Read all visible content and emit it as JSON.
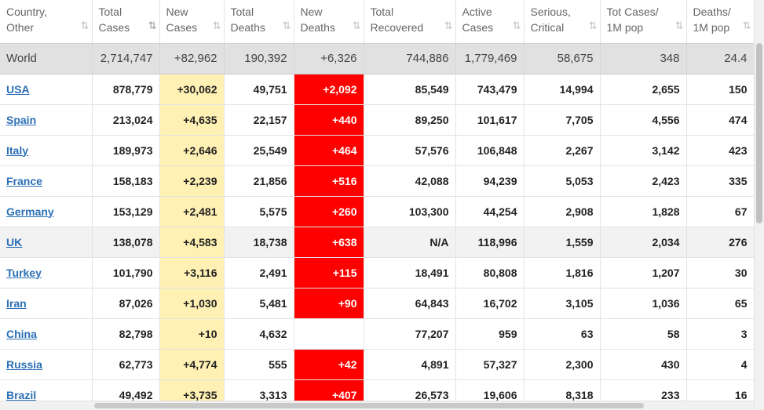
{
  "columns": [
    {
      "line1": "Country,",
      "line2": "Other",
      "sort": "⇅",
      "active": false
    },
    {
      "line1": "Total",
      "line2": "Cases",
      "sort": "⇅",
      "active": true
    },
    {
      "line1": "New",
      "line2": "Cases",
      "sort": "⇅",
      "active": false
    },
    {
      "line1": "Total",
      "line2": "Deaths",
      "sort": "⇅",
      "active": false
    },
    {
      "line1": "New",
      "line2": "Deaths",
      "sort": "⇅",
      "active": false
    },
    {
      "line1": "Total",
      "line2": "Recovered",
      "sort": "⇅",
      "active": false
    },
    {
      "line1": "Active",
      "line2": "Cases",
      "sort": "⇅",
      "active": false
    },
    {
      "line1": "Serious,",
      "line2": "Critical",
      "sort": "⇅",
      "active": false
    },
    {
      "line1": "Tot Cases/",
      "line2": "1M pop",
      "sort": "⇅",
      "active": false
    },
    {
      "line1": "Deaths/",
      "line2": "1M pop",
      "sort": "⇅",
      "active": false
    }
  ],
  "world": [
    "World",
    "2,714,747",
    "+82,962",
    "190,392",
    "+6,326",
    "744,886",
    "1,779,469",
    "58,675",
    "348",
    "24.4"
  ],
  "rows": [
    [
      "USA",
      "878,779",
      "+30,062",
      "49,751",
      "+2,092",
      "85,549",
      "743,479",
      "14,994",
      "2,655",
      "150"
    ],
    [
      "Spain",
      "213,024",
      "+4,635",
      "22,157",
      "+440",
      "89,250",
      "101,617",
      "7,705",
      "4,556",
      "474"
    ],
    [
      "Italy",
      "189,973",
      "+2,646",
      "25,549",
      "+464",
      "57,576",
      "106,848",
      "2,267",
      "3,142",
      "423"
    ],
    [
      "France",
      "158,183",
      "+2,239",
      "21,856",
      "+516",
      "42,088",
      "94,239",
      "5,053",
      "2,423",
      "335"
    ],
    [
      "Germany",
      "153,129",
      "+2,481",
      "5,575",
      "+260",
      "103,300",
      "44,254",
      "2,908",
      "1,828",
      "67"
    ],
    [
      "UK",
      "138,078",
      "+4,583",
      "18,738",
      "+638",
      "N/A",
      "118,996",
      "1,559",
      "2,034",
      "276"
    ],
    [
      "Turkey",
      "101,790",
      "+3,116",
      "2,491",
      "+115",
      "18,491",
      "80,808",
      "1,816",
      "1,207",
      "30"
    ],
    [
      "Iran",
      "87,026",
      "+1,030",
      "5,481",
      "+90",
      "64,843",
      "16,702",
      "3,105",
      "1,036",
      "65"
    ],
    [
      "China",
      "82,798",
      "+10",
      "4,632",
      "",
      "77,207",
      "959",
      "63",
      "58",
      "3"
    ],
    [
      "Russia",
      "62,773",
      "+4,774",
      "555",
      "+42",
      "4,891",
      "57,327",
      "2,300",
      "430",
      "4"
    ],
    [
      "Brazil",
      "49,492",
      "+3,735",
      "3,313",
      "+407",
      "26,573",
      "19,606",
      "8,318",
      "233",
      "16"
    ]
  ],
  "colors": {
    "new_cases_bg": "#fff0b3",
    "new_deaths_bg": "#ff0000",
    "link": "#2b6fb6",
    "world_bg": "#e1e1e1"
  }
}
